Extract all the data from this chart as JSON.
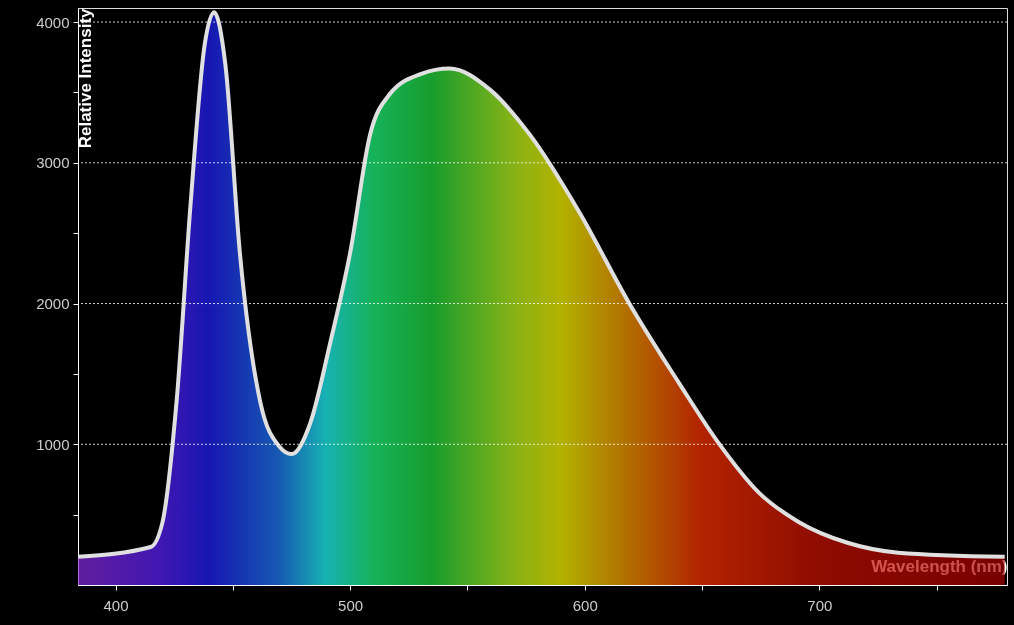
{
  "chart_data": {
    "type": "area",
    "xlabel": "Wavelength (nm)",
    "ylabel": "Relative Intensity",
    "x": [
      384,
      415,
      420,
      426,
      432,
      438,
      442,
      446.8,
      453,
      461.7,
      470,
      475,
      483,
      491.5,
      500,
      508.5,
      517,
      530,
      542.5,
      559.6,
      576.6,
      598,
      619,
      640,
      657,
      674,
      691,
      712,
      733.6,
      779
    ],
    "series": [
      {
        "color": "#e0e0e0",
        "values": [
          200,
          270,
          445,
          1300,
          2710,
          3840,
          4070,
          3700,
          2360,
          1300,
          980,
          930,
          1150,
          1720,
          2360,
          3200,
          3490,
          3630,
          3670,
          3520,
          3200,
          2640,
          2000,
          1440,
          1010,
          660,
          450,
          300,
          230,
          200
        ]
      }
    ],
    "xlim": [
      384,
      780
    ],
    "ylim": [
      0,
      4100
    ],
    "xticks": [
      400,
      {
        "value": 450,
        "label": null
      },
      500,
      {
        "value": 550,
        "label": null
      },
      600,
      {
        "value": 650,
        "label": null
      },
      700,
      {
        "value": 750,
        "label": null
      }
    ],
    "yticks": [
      {
        "value": 500,
        "label": null
      },
      1000,
      {
        "value": 1500,
        "label": null
      },
      2000,
      {
        "value": 2500,
        "label": null
      },
      3000,
      {
        "value": 3500,
        "label": null
      },
      4000
    ],
    "grid": "y"
  }
}
